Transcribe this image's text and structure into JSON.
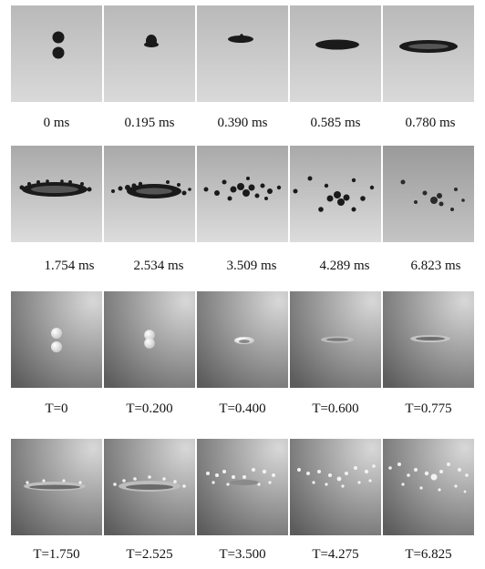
{
  "rows": [
    {
      "labels": [
        "0 ms",
        "0.195 ms",
        "0.390 ms",
        "0.585 ms",
        "0.780 ms"
      ]
    },
    {
      "labels": [
        "1.754 ms",
        "2.534 ms",
        "3.509 ms",
        "4.289 ms",
        "6.823 ms"
      ]
    },
    {
      "labels": [
        "T=0",
        "T=0.200",
        "T=0.400",
        "T=0.600",
        "T=0.775"
      ]
    },
    {
      "labels": [
        "T=1.750",
        "T=2.525",
        "T=3.500",
        "T=4.275",
        "T=6.825"
      ]
    }
  ],
  "colors": {
    "experiment_background": "#c8c8c8",
    "droplet_dark": "#1a1a1a",
    "simulation_background_light": "#d8d8d8",
    "simulation_background_dark": "#5c5c5c",
    "droplet_light": "#f2f2f2"
  }
}
